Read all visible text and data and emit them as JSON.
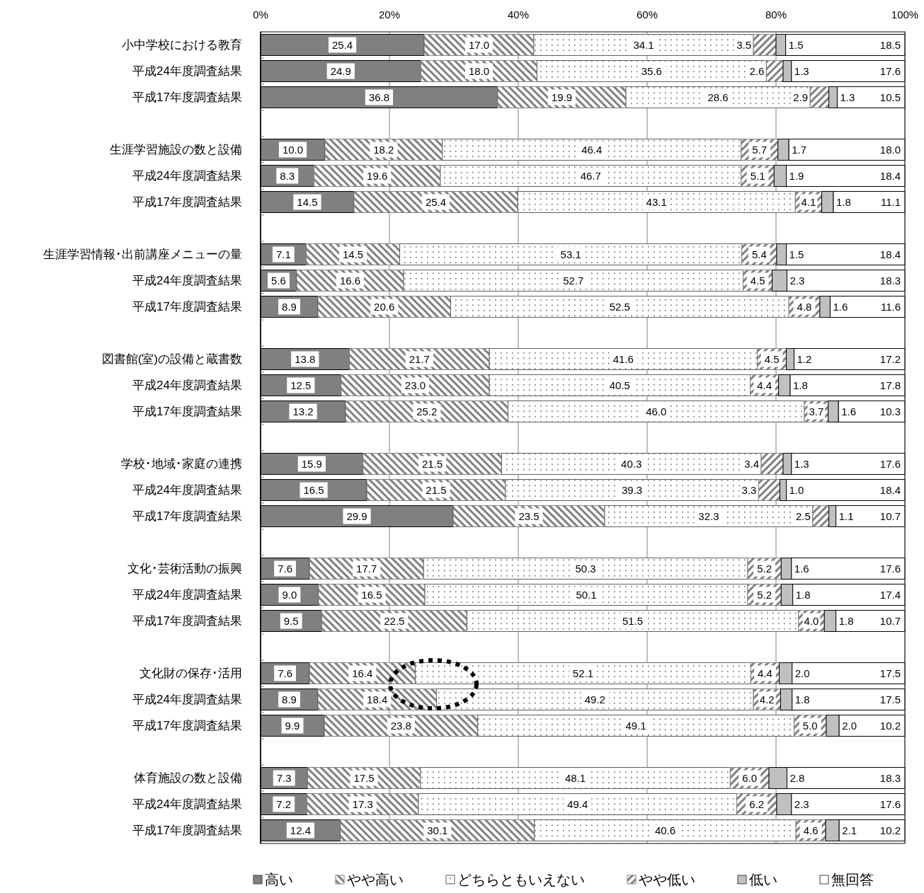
{
  "chart_data": {
    "type": "bar",
    "orientation": "horizontal",
    "stacked": true,
    "categories": [
      "小中学校における教育",
      "平成24年度調査結果",
      "平成17年度調査結果",
      null,
      "生涯学習施設の数と設備",
      "平成24年度調査結果",
      "平成17年度調査結果",
      null,
      "生涯学習情報･出前講座メニューの量",
      "平成24年度調査結果",
      "平成17年度調査結果",
      null,
      "図書館(室)の設備と蔵書数",
      "平成24年度調査結果",
      "平成17年度調査結果",
      null,
      "学校･地域･家庭の連携",
      "平成24年度調査結果",
      "平成17年度調査結果",
      null,
      "文化･芸術活動の振興",
      "平成24年度調査結果",
      "平成17年度調査結果",
      null,
      "文化財の保存･活用",
      "平成24年度調査結果",
      "平成17年度調査結果",
      null,
      "体育施設の数と設備",
      "平成24年度調査結果",
      "平成17年度調査結果"
    ],
    "series": [
      {
        "name": "高い",
        "color": "#808080",
        "values": [
          25.4,
          24.9,
          36.8,
          null,
          10.0,
          8.3,
          14.5,
          null,
          7.1,
          5.6,
          8.9,
          null,
          13.8,
          12.5,
          13.2,
          null,
          15.9,
          16.5,
          29.9,
          null,
          7.6,
          9.0,
          9.5,
          null,
          7.6,
          8.9,
          9.9,
          null,
          7.3,
          7.2,
          12.4
        ],
        "value_labels": [
          "25.4",
          "24.9",
          "36.8",
          null,
          "10.0",
          "8.3",
          "14.5",
          null,
          "7.1",
          "5.6",
          "8.9",
          null,
          "13.8",
          "12.5",
          "13.2",
          null,
          "15.9",
          "16.5",
          "29.9",
          null,
          "7.6",
          "9.0",
          "9.5",
          null,
          "7.6",
          "8.9",
          "9.9",
          null,
          "7.3",
          "7.2",
          "12.4"
        ]
      },
      {
        "name": "やや高い",
        "color": "#808080",
        "values": [
          17.0,
          18.0,
          19.9,
          null,
          18.2,
          19.6,
          25.4,
          null,
          14.5,
          16.6,
          20.6,
          null,
          21.7,
          23.0,
          25.2,
          null,
          21.5,
          21.5,
          23.5,
          null,
          17.7,
          16.5,
          22.5,
          null,
          16.4,
          18.4,
          23.8,
          null,
          17.5,
          17.3,
          30.1
        ],
        "value_labels": [
          "17.0",
          "18.0",
          "19.9",
          null,
          "18.2",
          "19.6",
          "25.4",
          null,
          "14.5",
          "16.6",
          "20.6",
          null,
          "21.7",
          "23.0",
          "25.2",
          null,
          "21.5",
          "21.5",
          "23.5",
          null,
          "17.7",
          "16.5",
          "22.5",
          null,
          "16.4",
          "18.4",
          "23.8",
          null,
          "17.5",
          "17.3",
          "30.1"
        ]
      },
      {
        "name": "どちらともいえない",
        "color": "#606060",
        "values": [
          34.1,
          35.6,
          28.6,
          null,
          46.4,
          46.7,
          43.1,
          null,
          53.1,
          52.7,
          52.5,
          null,
          41.6,
          40.5,
          46.0,
          null,
          40.3,
          39.3,
          32.3,
          null,
          50.3,
          50.1,
          51.5,
          null,
          52.1,
          49.2,
          49.1,
          null,
          48.1,
          49.4,
          40.6
        ],
        "value_labels": [
          "34.1",
          "35.6",
          "28.6",
          null,
          "46.4",
          "46.7",
          "43.1",
          null,
          "53.1",
          "52.7",
          "52.5",
          null,
          "41.6",
          "40.5",
          "46.0",
          null,
          "40.3",
          "39.3",
          "32.3",
          null,
          "50.3",
          "50.1",
          "51.5",
          null,
          "52.1",
          "49.2",
          "49.1",
          null,
          "48.1",
          "49.4",
          "40.6"
        ]
      },
      {
        "name": "やや低い",
        "color": "#808080",
        "values": [
          3.5,
          2.6,
          2.9,
          null,
          5.7,
          5.1,
          4.1,
          null,
          5.4,
          4.5,
          4.8,
          null,
          4.5,
          4.4,
          3.7,
          null,
          3.4,
          3.3,
          2.5,
          null,
          5.2,
          5.2,
          4.0,
          null,
          4.4,
          4.2,
          5.0,
          null,
          6.0,
          6.2,
          4.6
        ],
        "value_labels": [
          "3.5",
          "2.6",
          "2.9",
          null,
          "5.7",
          "5.1",
          "4.1",
          null,
          "5.4",
          "4.5",
          "4.8",
          null,
          "4.5",
          "4.4",
          "3.7",
          null,
          "3.4",
          "3.3",
          "2.5",
          null,
          "5.2",
          "5.2",
          "4.0",
          null,
          "4.4",
          "4.2",
          "5.0",
          null,
          "6.0",
          "6.2",
          "4.6"
        ]
      },
      {
        "name": "低い",
        "color": "#c0c0c0",
        "values": [
          1.5,
          1.3,
          1.3,
          null,
          1.7,
          1.9,
          1.8,
          null,
          1.5,
          2.3,
          1.6,
          null,
          1.2,
          1.8,
          1.6,
          null,
          1.3,
          1.0,
          1.1,
          null,
          1.6,
          1.8,
          1.8,
          null,
          2.0,
          1.8,
          2.0,
          null,
          2.8,
          2.3,
          2.1
        ],
        "value_labels": [
          "1.5",
          "1.3",
          "1.3",
          null,
          "1.7",
          "1.9",
          "1.8",
          null,
          "1.5",
          "2.3",
          "1.6",
          null,
          "1.2",
          "1.8",
          "1.6",
          null,
          "1.3",
          "1.0",
          "1.1",
          null,
          "1.6",
          "1.8",
          "1.8",
          null,
          "2.0",
          "1.8",
          "2.0",
          null,
          "2.8",
          "2.3",
          "2.1"
        ]
      },
      {
        "name": "無回答",
        "color": "#ffffff",
        "values": [
          18.5,
          17.6,
          10.5,
          null,
          18.0,
          18.4,
          11.1,
          null,
          18.4,
          18.3,
          11.6,
          null,
          17.2,
          17.8,
          10.3,
          null,
          17.6,
          18.4,
          10.7,
          null,
          17.6,
          17.4,
          10.7,
          null,
          17.5,
          17.5,
          10.2,
          null,
          18.3,
          17.6,
          10.2
        ],
        "value_labels": [
          "18.5",
          "17.6",
          "10.5",
          null,
          "18.0",
          "18.4",
          "11.1",
          null,
          "18.4",
          "18.3",
          "11.6",
          null,
          "17.2",
          "17.8",
          "10.3",
          null,
          "17.6",
          "18.4",
          "10.7",
          null,
          "17.6",
          "17.4",
          "10.7",
          null,
          "17.5",
          "17.5",
          "10.2",
          null,
          "18.3",
          "17.6",
          "10.2"
        ]
      }
    ],
    "xlim": [
      0,
      100
    ],
    "xticks": [
      {
        "value": 0,
        "label": "0%"
      },
      {
        "value": 20,
        "label": "20%"
      },
      {
        "value": 40,
        "label": "40%"
      },
      {
        "value": 60,
        "label": "60%"
      },
      {
        "value": 80,
        "label": "80%"
      },
      {
        "value": 100,
        "label": "100%"
      }
    ],
    "grid": "x",
    "legend": "bottom"
  }
}
